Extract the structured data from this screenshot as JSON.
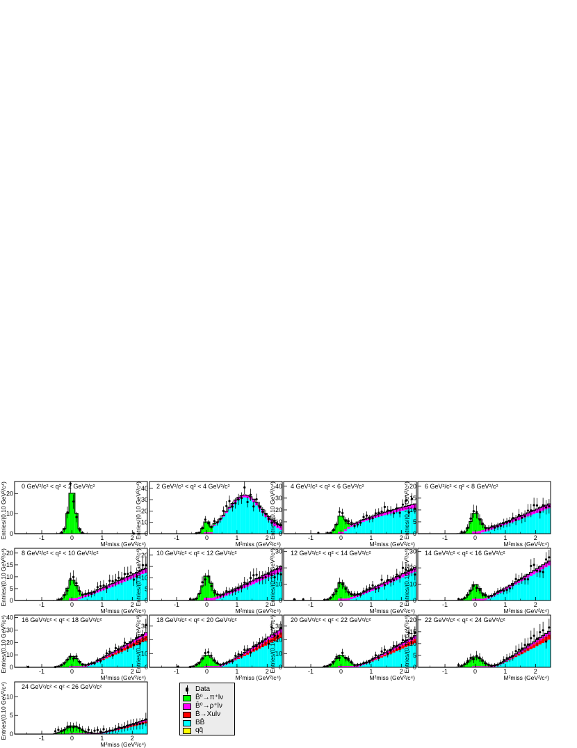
{
  "chart_data": {
    "type": "histogram-grid",
    "x_range": [
      -1.9,
      2.5
    ],
    "xlabel": "M²miss (GeV²/c⁴)",
    "ylabel": "Entries/(0.10 GeV²/c⁴)",
    "x_ticks": [
      "-1",
      "0",
      "1",
      "2"
    ],
    "colors": {
      "data": "#000000",
      "pi": "#00ff00",
      "rho": "#ff00ff",
      "xu": "#ff0000",
      "bb": "#00ffff",
      "qq": "#ffff00"
    },
    "legend": [
      {
        "key": "data",
        "label": "Data"
      },
      {
        "key": "pi",
        "label": "B̄⁰→π⁺lν"
      },
      {
        "key": "rho",
        "label": "B̄⁰→ρ⁺lν"
      },
      {
        "key": "xu",
        "label": "B̄→Xulν"
      },
      {
        "key": "bb",
        "label": "BB̄"
      },
      {
        "key": "qq",
        "label": "qq̄"
      }
    ],
    "panels": [
      {
        "title": "0 GeV²/c² < q² < 2 GeV²/c²",
        "ylim": [
          0,
          26
        ],
        "yticks": [
          "0",
          "10",
          "20"
        ],
        "peak_height": 22,
        "signal_width": 0.12,
        "bb_height": 0,
        "bb_onset": 1.0
      },
      {
        "title": "2 GeV²/c² < q² < 4 GeV²/c²",
        "ylim": [
          0,
          46
        ],
        "yticks": [
          "0",
          "10",
          "20",
          "30",
          "40"
        ],
        "peak_height": 10,
        "signal_width": 0.12,
        "bb_height": 32,
        "bb_onset": 0.4
      },
      {
        "title": "4 GeV²/c² < q² < 6 GeV²/c²",
        "ylim": [
          0,
          44
        ],
        "yticks": [
          "0",
          "10",
          "20",
          "30",
          "40"
        ],
        "peak_height": 14,
        "signal_width": 0.14,
        "bb_height": 22,
        "bb_onset": 0.4
      },
      {
        "title": "6 GeV²/c² < q² < 8 GeV²/c²",
        "ylim": [
          0,
          22
        ],
        "yticks": [
          "0",
          "5",
          "10",
          "15",
          "20"
        ],
        "peak_height": 8,
        "signal_width": 0.16,
        "bb_height": 11,
        "bb_onset": 0.4
      },
      {
        "title": "8 GeV²/c² < q² < 10 GeV²/c²",
        "ylim": [
          0,
          22
        ],
        "yticks": [
          "0",
          "5",
          "10",
          "15",
          "20"
        ],
        "peak_height": 8,
        "signal_width": 0.16,
        "bb_height": 12,
        "bb_onset": 0.4
      },
      {
        "title": "10 GeV²/c² < q² < 12 GeV²/c²",
        "ylim": [
          0,
          23
        ],
        "yticks": [
          "0",
          "5",
          "10",
          "15",
          "20"
        ],
        "peak_height": 10,
        "signal_width": 0.16,
        "bb_height": 13,
        "bb_onset": 0.5
      },
      {
        "title": "12 GeV²/c² < q² < 14 GeV²/c²",
        "ylim": [
          0,
          32
        ],
        "yticks": [
          "0",
          "10",
          "20",
          "30"
        ],
        "peak_height": 10,
        "signal_width": 0.18,
        "bb_height": 18,
        "bb_onset": 0.5
      },
      {
        "title": "14 GeV²/c² < q² < 16 GeV²/c²",
        "ylim": [
          0,
          32
        ],
        "yticks": [
          "0",
          "10",
          "20",
          "30"
        ],
        "peak_height": 9,
        "signal_width": 0.18,
        "bb_height": 22,
        "bb_onset": 0.6
      },
      {
        "title": "16 GeV²/c² < q² < 18 GeV²/c²",
        "ylim": [
          0,
          42
        ],
        "yticks": [
          "0",
          "10",
          "20",
          "30",
          "40"
        ],
        "peak_height": 8,
        "signal_width": 0.2,
        "bb_height": 22,
        "bb_onset": 0.7
      },
      {
        "title": "18 GeV²/c² < q² < 20 GeV²/c²",
        "ylim": [
          0,
          38
        ],
        "yticks": [
          "0",
          "10",
          "20",
          "30"
        ],
        "peak_height": 8,
        "signal_width": 0.2,
        "bb_height": 22,
        "bb_onset": 0.7
      },
      {
        "title": "20 GeV²/c² < q² < 22 GeV²/c²",
        "ylim": [
          0,
          38
        ],
        "yticks": [
          "0",
          "10",
          "20",
          "30"
        ],
        "peak_height": 8,
        "signal_width": 0.22,
        "bb_height": 18,
        "bb_onset": 0.8
      },
      {
        "title": "22 GeV²/c² < q² < 24 GeV²/c²",
        "ylim": [
          0,
          22
        ],
        "yticks": [
          "0",
          "5",
          "10",
          "15",
          "20"
        ],
        "peak_height": 4,
        "signal_width": 0.22,
        "bb_height": 12,
        "bb_onset": 0.9
      },
      {
        "title": "24 GeV²/c² < q² < 26 GeV²/c²",
        "ylim": [
          0,
          14
        ],
        "yticks": [
          "0",
          "5",
          "10"
        ],
        "peak_height": 2,
        "signal_width": 0.25,
        "bb_height": 3,
        "bb_onset": 1.2
      }
    ]
  }
}
